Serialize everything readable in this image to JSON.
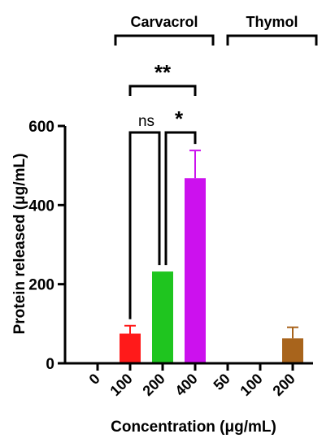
{
  "chart_data": {
    "type": "bar",
    "title": "",
    "ylabel": "Protein released (μg/mL)",
    "xlabel": "Concentration (μg/mL)",
    "ylim": [
      0,
      600
    ],
    "yticks": [
      0,
      200,
      400,
      600
    ],
    "grid": false,
    "groups": [
      {
        "name": "Carvacrol",
        "categories": [
          "100",
          "200",
          "400"
        ]
      },
      {
        "name": "Thymol",
        "categories": [
          "50",
          "100",
          "200"
        ]
      }
    ],
    "categories": [
      "0",
      "100",
      "200",
      "400",
      "50",
      "100",
      "200"
    ],
    "values": [
      0,
      75,
      232,
      468,
      0,
      0,
      63
    ],
    "errors": [
      0,
      20,
      0,
      70,
      0,
      0,
      28
    ],
    "colors": [
      "#000000",
      "#ff1a1a",
      "#1fc51f",
      "#cc11ee",
      "#000000",
      "#000000",
      "#a8641c"
    ],
    "significance": [
      {
        "label": "ns",
        "from": 1,
        "to": 2
      },
      {
        "label": "*",
        "from": 2,
        "to": 3
      },
      {
        "label": "**",
        "from": 1,
        "to": 3
      }
    ]
  }
}
